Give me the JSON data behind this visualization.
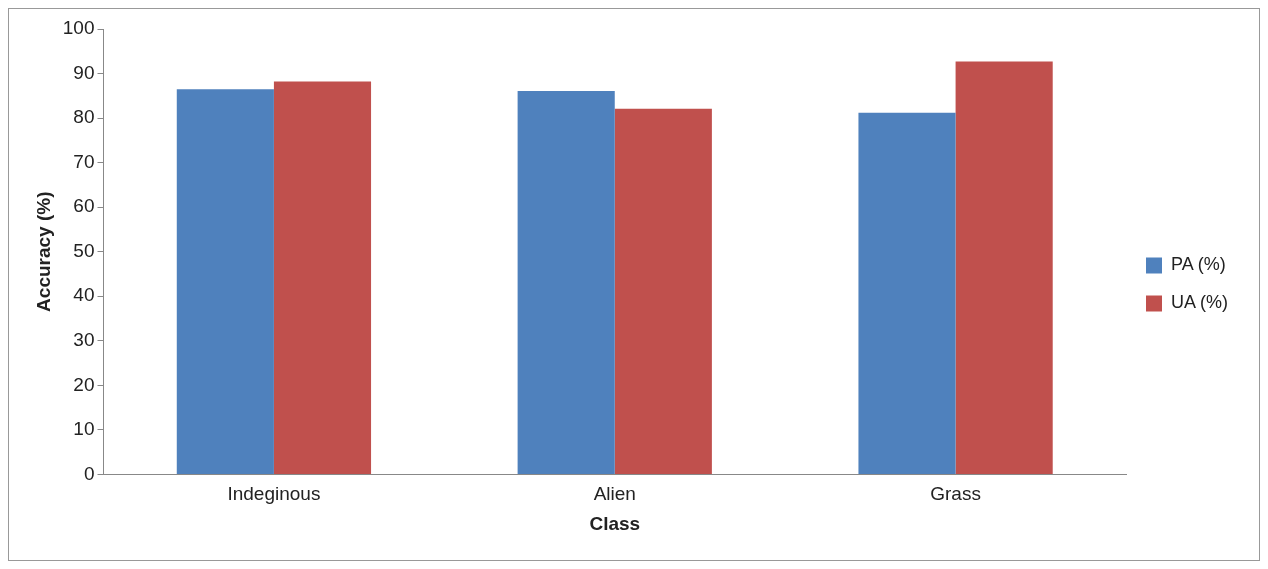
{
  "chart_data": {
    "type": "bar",
    "xlabel": "Class",
    "ylabel": "Accuracy (%)",
    "categories": [
      "Indeginous",
      "Alien",
      "Grass"
    ],
    "series": [
      {
        "name": "PA (%)",
        "color": "#4f81bd",
        "values": [
          86.5,
          86.1,
          81.2
        ]
      },
      {
        "name": "UA (%)",
        "color": "#c0504d",
        "values": [
          88.2,
          82.1,
          92.7
        ]
      }
    ],
    "ylim": [
      0,
      100
    ],
    "yticks": [
      0,
      10,
      20,
      30,
      40,
      50,
      60,
      70,
      80,
      90,
      100
    ],
    "grid": false,
    "legend": "right"
  }
}
